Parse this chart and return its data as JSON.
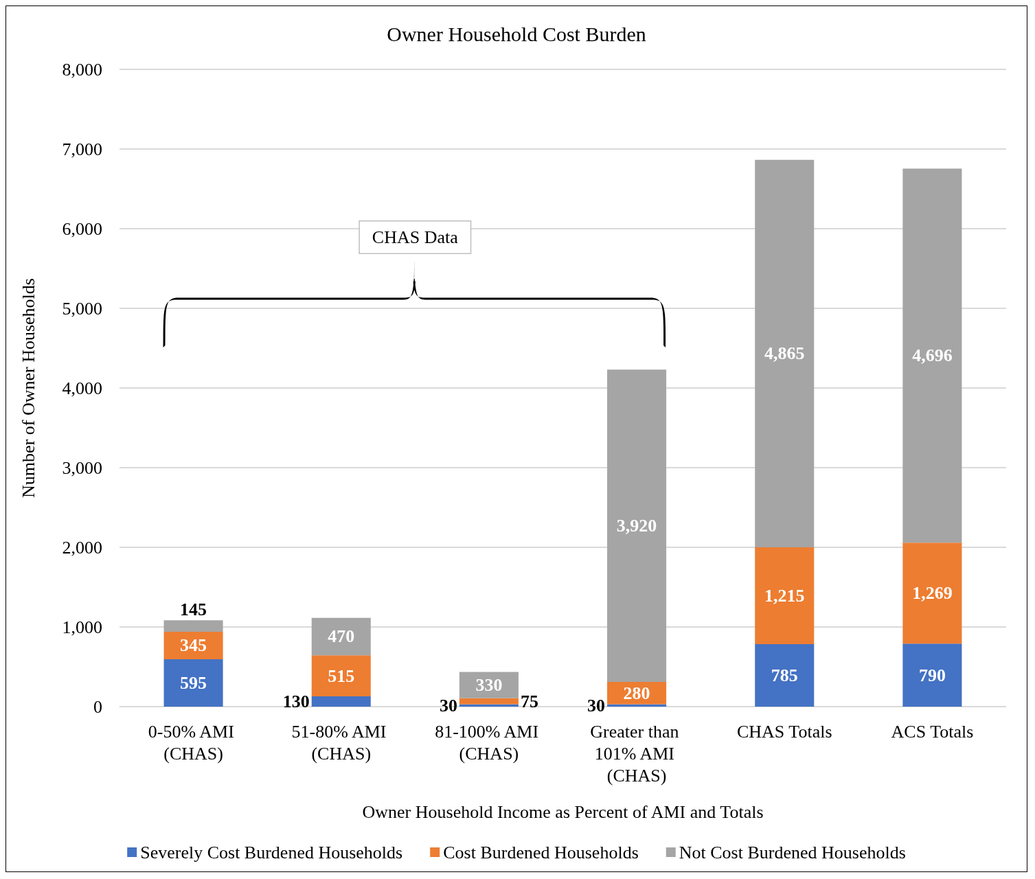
{
  "chart_data": {
    "type": "bar",
    "stacked": true,
    "title": "Owner Household Cost Burden",
    "xlabel": "Owner Household Income as Percent of AMI and Totals",
    "ylabel": "Number of Owner Households",
    "categories": [
      "0-50% AMI (CHAS)",
      "51-80% AMI (CHAS)",
      "81-100% AMI (CHAS)",
      "Greater than 101% AMI (CHAS)",
      "CHAS Totals",
      "ACS Totals"
    ],
    "series": [
      {
        "name": "Severely Cost Burdened Households",
        "color": "#4472c4",
        "values": [
          595,
          130,
          30,
          30,
          785,
          790
        ],
        "value_labels": [
          "595",
          "130",
          "30",
          "30",
          "785",
          "790"
        ]
      },
      {
        "name": "Cost Burdened Households",
        "color": "#ed7d31",
        "values": [
          345,
          515,
          75,
          280,
          1215,
          1269
        ],
        "value_labels": [
          "345",
          "515",
          "75",
          "280",
          "1,215",
          "1,269"
        ]
      },
      {
        "name": "Not Cost Burdened Households",
        "color": "#a5a5a5",
        "values": [
          145,
          470,
          330,
          3920,
          4865,
          4696
        ],
        "value_labels": [
          "145",
          "470",
          "330",
          "3,920",
          "4,865",
          "4,696"
        ]
      }
    ],
    "ylim": [
      0,
      8000
    ],
    "yticks": [
      0,
      {
        "value": 1000,
        "label": "1,000"
      },
      {
        "value": 2000,
        "label": "2,000"
      },
      {
        "value": 3000,
        "label": "3,000"
      },
      {
        "value": 4000,
        "label": "4,000"
      },
      {
        "value": 5000,
        "label": "5,000"
      },
      {
        "value": 6000,
        "label": "6,000"
      },
      {
        "value": 7000,
        "label": "7,000"
      },
      {
        "value": 8000,
        "label": "8,000"
      }
    ],
    "grid": "y",
    "legend": "bottom",
    "annotations": [
      "CHAS Data"
    ]
  }
}
